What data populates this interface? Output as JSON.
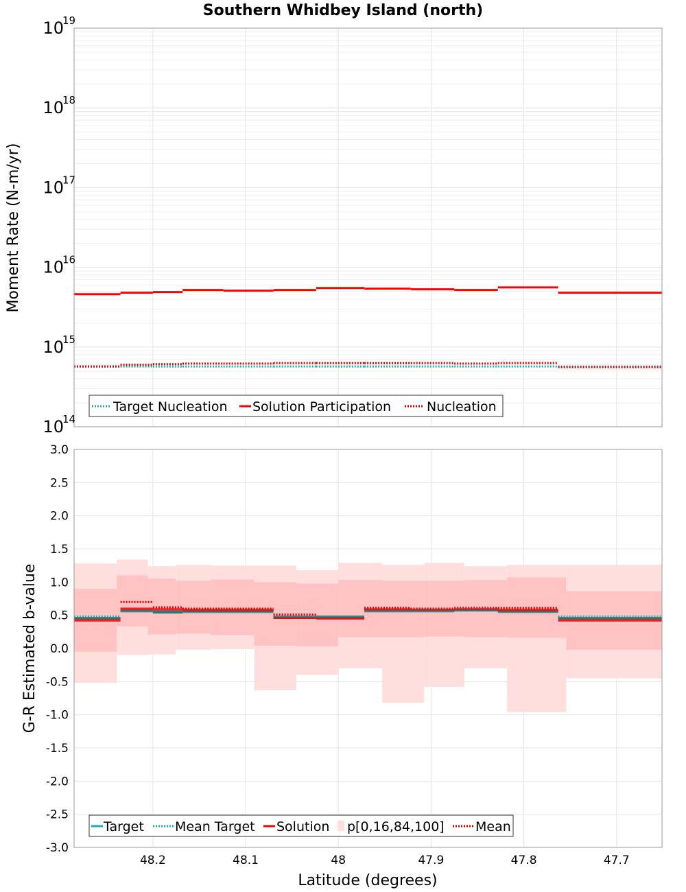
{
  "title": "Southern Whidbey Island (north)",
  "chart_data": [
    {
      "type": "line",
      "panel": "top",
      "ylabel": "Moment Rate (N-m/yr)",
      "yscale": "log",
      "ylim": [
        100000000000000.0,
        1e+19
      ],
      "y_ticks": [
        {
          "base": "10",
          "exp": "14"
        },
        {
          "base": "10",
          "exp": "15"
        },
        {
          "base": "10",
          "exp": "16"
        },
        {
          "base": "10",
          "exp": "17"
        },
        {
          "base": "10",
          "exp": "18"
        },
        {
          "base": "10",
          "exp": "19"
        }
      ],
      "xlim": [
        48.285,
        47.651
      ],
      "grid": true,
      "legend_position": "bottom-left",
      "bin_edges": [
        48.285,
        48.235,
        48.2,
        48.168,
        48.124,
        48.07,
        48.024,
        47.972,
        47.922,
        47.875,
        47.828,
        47.763,
        47.651
      ],
      "series": [
        {
          "name": "Target Nucleation",
          "style": "dotted",
          "color": "#1ab3b3",
          "values": [
            570000000000000.0,
            570000000000000.0,
            570000000000000.0,
            570000000000000.0,
            570000000000000.0,
            570000000000000.0,
            570000000000000.0,
            570000000000000.0,
            570000000000000.0,
            570000000000000.0,
            570000000000000.0,
            570000000000000.0
          ]
        },
        {
          "name": "Solution Participation",
          "style": "solid",
          "color": "#ff0000",
          "values": [
            4600000000000000.0,
            4800000000000000.0,
            4900000000000000.0,
            5200000000000000.0,
            5100000000000000.0,
            5200000000000000.0,
            5500000000000000.0,
            5400000000000000.0,
            5300000000000000.0,
            5200000000000000.0,
            5600000000000000.0,
            4800000000000000.0
          ]
        },
        {
          "name": "Nucleation",
          "style": "dotted",
          "color": "#dd0000",
          "values": [
            570000000000000.0,
            600000000000000.0,
            610000000000000.0,
            620000000000000.0,
            620000000000000.0,
            630000000000000.0,
            630000000000000.0,
            630000000000000.0,
            630000000000000.0,
            620000000000000.0,
            630000000000000.0,
            560000000000000.0
          ]
        }
      ]
    },
    {
      "type": "line",
      "panel": "bottom",
      "xlabel": "Latitude (degrees)",
      "ylabel": "G-R Estimated b-value",
      "ylim": [
        -3.0,
        3.0
      ],
      "y_ticks": [
        "-3.0",
        "-2.5",
        "-2.0",
        "-1.5",
        "-1.0",
        "-0.5",
        "0.0",
        "0.5",
        "1.0",
        "1.5",
        "2.0",
        "2.5",
        "3.0"
      ],
      "xlim": [
        48.285,
        47.651
      ],
      "x_ticks": [
        48.2,
        48.1,
        48.0,
        47.9,
        47.8,
        47.7
      ],
      "x_tick_labels": [
        "48.2",
        "48.1",
        "48",
        "47.9",
        "47.8",
        "47.7"
      ],
      "grid": true,
      "legend_position": "bottom-left",
      "bin_edges": [
        48.285,
        48.235,
        48.2,
        48.168,
        48.124,
        48.07,
        48.024,
        47.972,
        47.922,
        47.875,
        47.828,
        47.763,
        47.651
      ],
      "series": [
        {
          "name": "Target",
          "style": "solid",
          "color": "#1ab3b3",
          "values": [
            0.45,
            0.57,
            0.55,
            0.56,
            0.56,
            0.47,
            0.47,
            0.57,
            0.57,
            0.58,
            0.56,
            0.45
          ]
        },
        {
          "name": "Mean Target",
          "style": "dotted",
          "color": "#1ab3b3",
          "values": [
            0.48,
            0.58,
            0.56,
            0.57,
            0.57,
            0.48,
            0.48,
            0.58,
            0.58,
            0.59,
            0.57,
            0.48
          ]
        },
        {
          "name": "Solution",
          "style": "solid",
          "color": "#ff0000",
          "values": [
            0.42,
            0.6,
            0.59,
            0.58,
            0.58,
            0.46,
            0.45,
            0.59,
            0.58,
            0.59,
            0.58,
            0.42
          ]
        },
        {
          "name": "p[0,16,84,100]",
          "style": "band",
          "color": "#ffc0c0",
          "p0": [
            -0.52,
            -0.1,
            -0.09,
            -0.02,
            -0.01,
            -0.63,
            -0.4,
            -0.3,
            -0.82,
            -0.58,
            -0.3,
            -0.96,
            -0.45
          ],
          "p16": [
            -0.05,
            0.33,
            0.21,
            0.22,
            0.2,
            0.04,
            0.03,
            0.17,
            0.17,
            0.18,
            0.17,
            0.16,
            -0.02
          ],
          "p84": [
            0.9,
            1.1,
            1.05,
            1.02,
            1.04,
            1.0,
            0.98,
            1.03,
            1.02,
            1.02,
            1.03,
            1.07,
            0.86
          ],
          "p100": [
            1.28,
            1.34,
            1.24,
            1.26,
            1.25,
            1.25,
            1.18,
            1.29,
            1.26,
            1.29,
            1.24,
            1.26,
            1.26
          ]
        },
        {
          "name": "Mean",
          "style": "dotted",
          "color": "#dd0000",
          "values": [
            0.45,
            0.7,
            0.62,
            0.6,
            0.6,
            0.51,
            0.48,
            0.61,
            0.6,
            0.61,
            0.61,
            0.46
          ]
        }
      ]
    }
  ]
}
